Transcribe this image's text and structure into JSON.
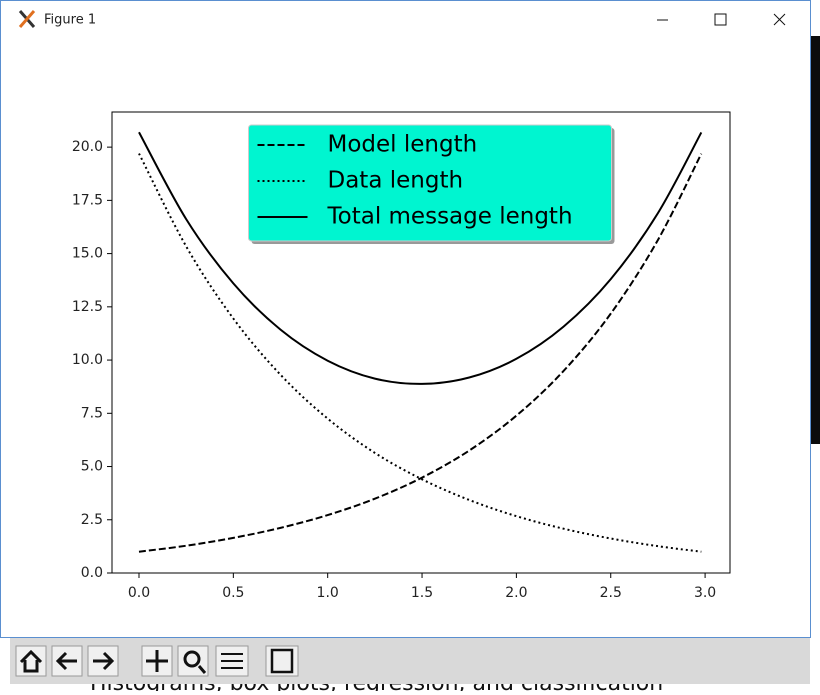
{
  "window": {
    "title": "Figure 1",
    "background_text": "Histograms, box plots, regression, and classification"
  },
  "chart_data": {
    "type": "line",
    "x": [
      0,
      0.25,
      0.5,
      0.75,
      1,
      1.25,
      1.5,
      1.75,
      2,
      2.25,
      2.5,
      2.75,
      2.98
    ],
    "series": [
      {
        "name": "Model length",
        "color": "#000000",
        "linestyle": "dashed",
        "values": [
          1,
          1.28,
          1.65,
          2.12,
          2.72,
          3.49,
          4.48,
          5.75,
          7.39,
          9.49,
          12.18,
          15.64,
          19.69
        ]
      },
      {
        "name": "Data length",
        "color": "#000000",
        "linestyle": "dotted",
        "values": [
          19.7,
          15.34,
          11.95,
          9.31,
          7.25,
          5.64,
          4.4,
          3.43,
          2.67,
          2.08,
          1.62,
          1.26,
          1.0
        ]
      },
      {
        "name": "Total message length",
        "color": "#000000",
        "linestyle": "solid",
        "values": [
          20.7,
          16.62,
          13.6,
          11.43,
          9.97,
          9.13,
          8.88,
          9.18,
          10.06,
          11.57,
          13.8,
          16.9,
          20.69
        ]
      }
    ],
    "xlim": [
      -0.143,
      3.132
    ],
    "ylim": [
      0,
      21.65
    ],
    "xticks": [
      {
        "value": 0,
        "label": "0.0"
      },
      0.5,
      {
        "value": 1,
        "label": "1.0"
      },
      1.5,
      {
        "value": 2,
        "label": "2.0"
      },
      2.5,
      {
        "value": 3,
        "label": "3.0"
      }
    ],
    "yticks": [
      {
        "value": 0,
        "label": "0.0"
      },
      2.5,
      {
        "value": 5,
        "label": "5.0"
      },
      7.5,
      {
        "value": 10,
        "label": "10.0"
      },
      12.5,
      {
        "value": 15,
        "label": "15.0"
      },
      17.5,
      {
        "value": 20,
        "label": "20.0"
      }
    ],
    "legend": "upper center",
    "legend_color": "#00f5d0"
  }
}
